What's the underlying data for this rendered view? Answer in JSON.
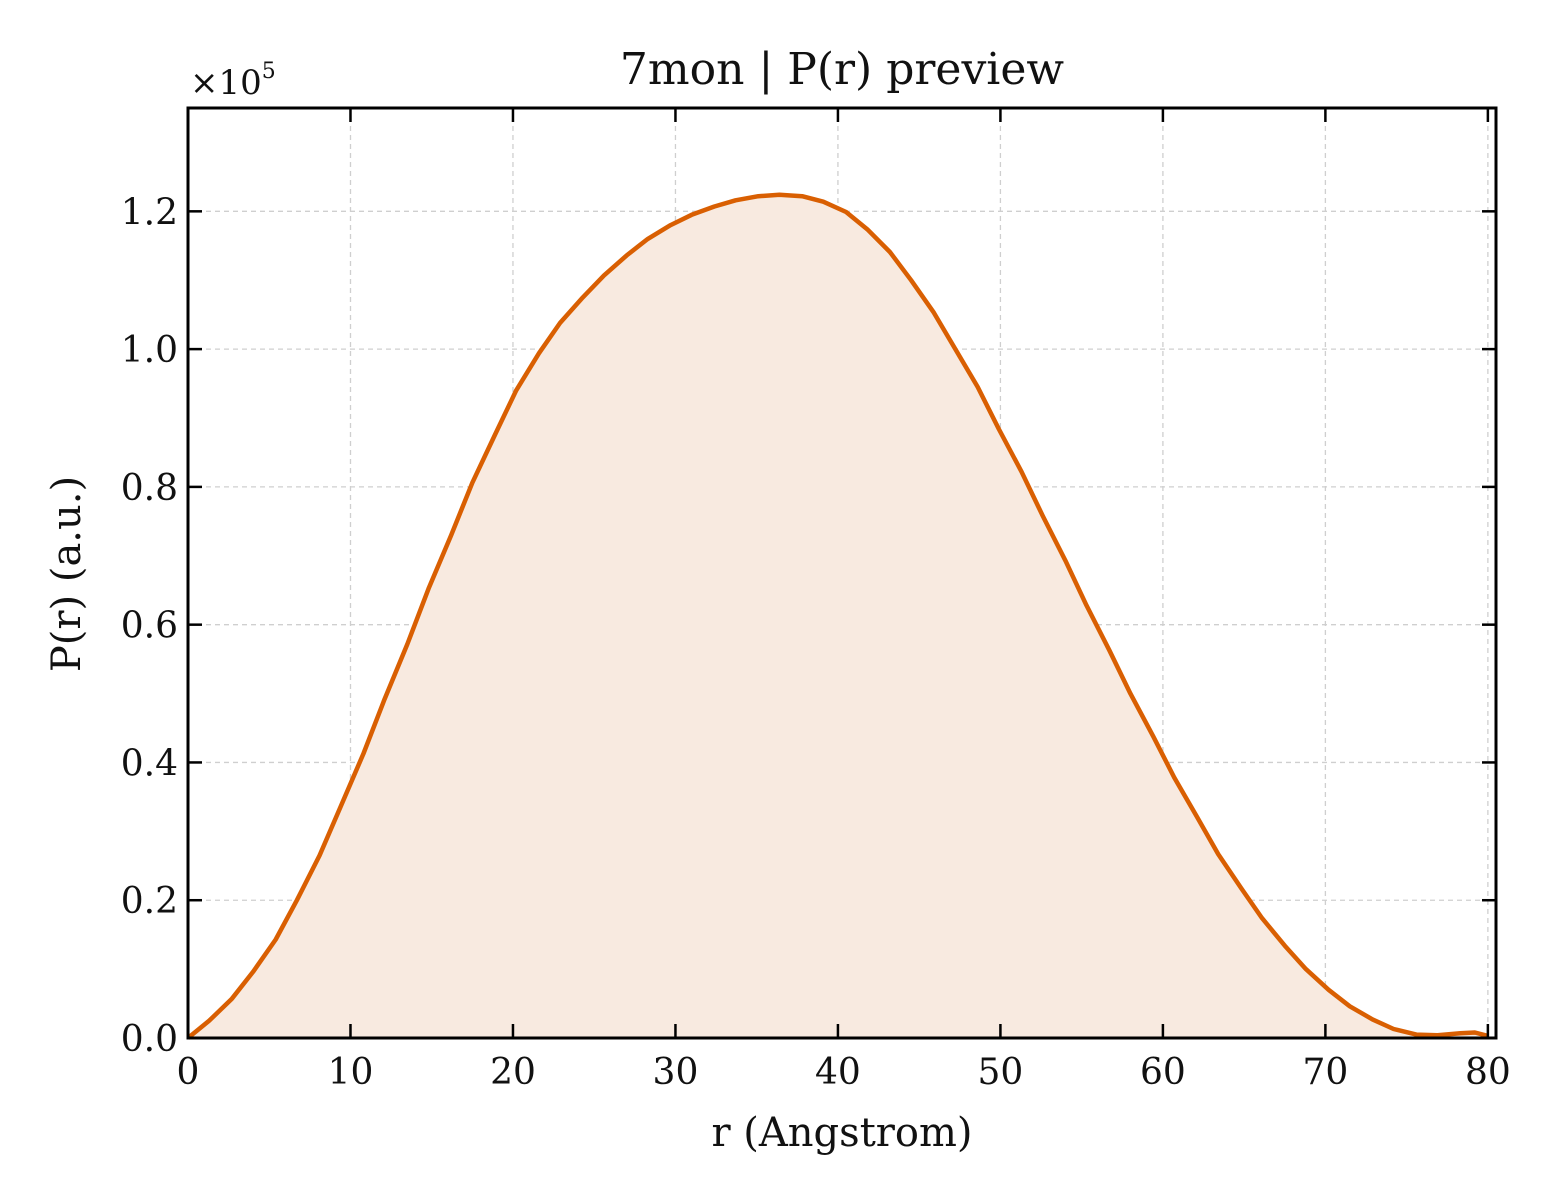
{
  "chart_data": {
    "type": "area",
    "title": "7mon | P(r) preview",
    "xlabel": "r (Angstrom)",
    "ylabel": "P(r) (a.u.)",
    "y_multiplier": "×10",
    "y_multiplier_exponent": "5",
    "xlim": [
      0,
      80.5
    ],
    "ylim": [
      0,
      1.35
    ],
    "x_ticks": [
      0,
      10,
      20,
      30,
      40,
      50,
      60,
      70,
      80
    ],
    "x_tick_labels": [
      "0",
      "10",
      "20",
      "30",
      "40",
      "50",
      "60",
      "70",
      "80"
    ],
    "y_ticks": [
      0,
      0.2,
      0.4,
      0.6,
      0.8,
      1.0,
      1.2
    ],
    "y_tick_labels": [
      "0.0",
      "0.2",
      "0.4",
      "0.6",
      "0.8",
      "1.0",
      "1.2"
    ],
    "grid": true,
    "line_color": "#d95f02",
    "fill_color": "#f8eae0",
    "series": [
      {
        "x": [
          0,
          1.3,
          2.7,
          4,
          5.4,
          6.7,
          8.1,
          9.4,
          10.8,
          12.1,
          13.5,
          14.8,
          16.2,
          17.5,
          18.9,
          20.2,
          21.6,
          22.9,
          24.3,
          25.6,
          27,
          28.3,
          29.7,
          31,
          32.4,
          33.7,
          35.1,
          36.4,
          37.8,
          39.1,
          40.5,
          41.8,
          43.2,
          44.5,
          45.9,
          47.2,
          48.6,
          49.9,
          51.3,
          52.6,
          54,
          55.3,
          56.7,
          58,
          59.4,
          60.7,
          62.1,
          63.4,
          64.8,
          66.1,
          67.5,
          68.8,
          70.2,
          71.5,
          72.9,
          74.2,
          75.6,
          76.9,
          78.3,
          79.2,
          80
        ],
        "y": [
          0,
          0.025,
          0.057,
          0.096,
          0.143,
          0.2,
          0.265,
          0.336,
          0.413,
          0.492,
          0.572,
          0.652,
          0.73,
          0.806,
          0.876,
          0.94,
          0.994,
          1.038,
          1.075,
          1.107,
          1.136,
          1.16,
          1.18,
          1.195,
          1.207,
          1.216,
          1.222,
          1.224,
          1.222,
          1.214,
          1.199,
          1.174,
          1.141,
          1.1,
          1.053,
          1.001,
          0.945,
          0.884,
          0.822,
          0.758,
          0.693,
          0.628,
          0.563,
          0.5,
          0.438,
          0.378,
          0.321,
          0.267,
          0.218,
          0.174,
          0.134,
          0.1,
          0.07,
          0.046,
          0.027,
          0.013,
          0.005,
          0.004,
          0.007,
          0.008,
          0.003
        ]
      }
    ]
  }
}
